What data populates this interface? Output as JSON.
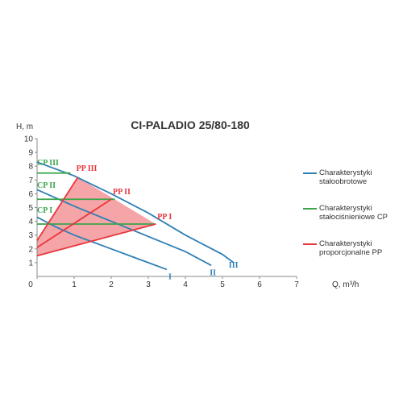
{
  "chart_data": {
    "type": "line",
    "title": "CI-PALADIO 25/80-180",
    "x_label": "Q, m³/h",
    "y_label": "H, m",
    "xlim": [
      0,
      7
    ],
    "ylim": [
      0,
      10
    ],
    "xticks": [
      0,
      1,
      2,
      3,
      4,
      5,
      6,
      7
    ],
    "yticks": [
      1,
      2,
      3,
      4,
      5,
      6,
      7,
      8,
      9,
      10
    ],
    "series": [
      {
        "name": "I",
        "color": "#2f7fb5",
        "x": [
          0,
          0.5,
          1,
          1.5,
          2,
          2.5,
          3,
          3.5
        ],
        "values": [
          4.3,
          3.6,
          3.0,
          2.5,
          2.0,
          1.5,
          1.0,
          0.5
        ]
      },
      {
        "name": "II",
        "color": "#2f7fb5",
        "x": [
          0,
          1,
          2,
          3,
          4,
          4.7
        ],
        "values": [
          6.3,
          5.1,
          4.0,
          2.9,
          1.8,
          0.8
        ]
      },
      {
        "name": "III",
        "color": "#2f7fb5",
        "x": [
          0,
          1,
          2,
          3,
          4,
          5,
          5.3
        ],
        "values": [
          8.3,
          7.3,
          6.0,
          4.6,
          3.0,
          1.6,
          1.0
        ]
      },
      {
        "name": "CP I",
        "color": "#3aa54a",
        "x": [
          0,
          3.2
        ],
        "values": [
          3.8,
          3.8
        ]
      },
      {
        "name": "CP II",
        "color": "#3aa54a",
        "x": [
          0,
          2.1
        ],
        "values": [
          5.6,
          5.6
        ]
      },
      {
        "name": "CP III",
        "color": "#3aa54a",
        "x": [
          0,
          0.9
        ],
        "values": [
          7.5,
          7.5
        ]
      },
      {
        "name": "PP I",
        "color": "#e8373c",
        "x": [
          0,
          3.2
        ],
        "values": [
          1.5,
          3.8
        ]
      },
      {
        "name": "PP II",
        "color": "#e8373c",
        "x": [
          0,
          2.0
        ],
        "values": [
          2.1,
          5.6
        ]
      },
      {
        "name": "PP III",
        "color": "#e8373c",
        "x": [
          0,
          1.1
        ],
        "values": [
          2.6,
          7.2
        ]
      }
    ],
    "legend": [
      {
        "label": "Charakterystyki stałoobrotowe",
        "color": "#2f7fb5"
      },
      {
        "label": "Charakterystyki stałociśnieniowe CP",
        "color": "#3aa54a"
      },
      {
        "label": "Charakterystyki proporcjonalne PP",
        "color": "#e8373c"
      }
    ]
  }
}
